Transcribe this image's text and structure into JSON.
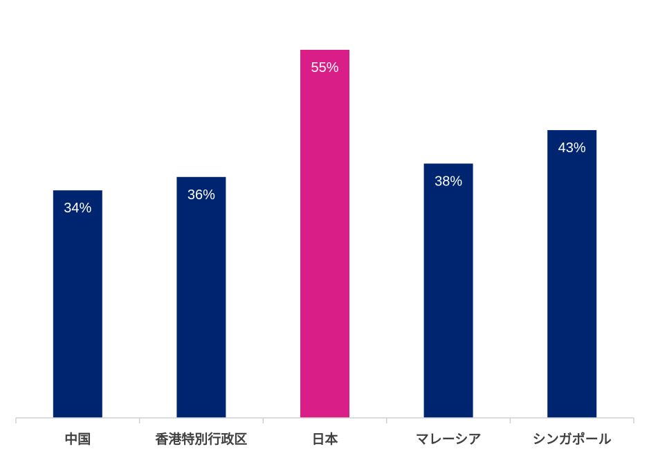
{
  "chart_data": {
    "type": "bar",
    "categories": [
      "中国",
      "香港特別行政区",
      "日本",
      "マレーシア",
      "シンガポール"
    ],
    "values": [
      34,
      36,
      55,
      38,
      43
    ],
    "value_labels": [
      "34%",
      "36%",
      "55%",
      "38%",
      "43%"
    ],
    "units": "%",
    "ylim": [
      0,
      55
    ],
    "grid": false,
    "legend": "none",
    "title": "",
    "xlabel": "",
    "ylabel": "",
    "colors": {
      "default": "#002570",
      "highlight": "#D91F87"
    },
    "highlight_category": "日本"
  }
}
